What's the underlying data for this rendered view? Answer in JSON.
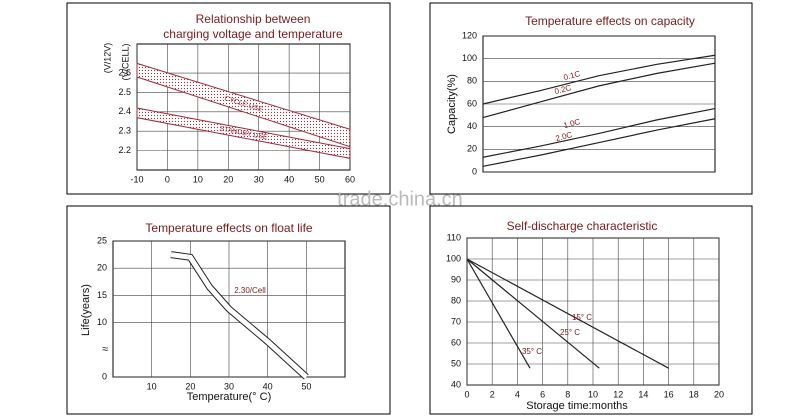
{
  "watermark": "trade.china.cn",
  "chart_data": [
    {
      "type": "band",
      "title": [
        "Relationship between",
        "charging voltage and temperature"
      ],
      "y_label": "(V/CELL)",
      "y2_label": "(V/12V)",
      "x": [
        -10,
        60
      ],
      "series": [
        {
          "name": "CYCLE USE",
          "color": "#9b2a3a",
          "upper": [
            2.65,
            2.31
          ],
          "lower": [
            2.58,
            2.22
          ]
        },
        {
          "name": "STANDBY USE",
          "color": "#9b2a3a",
          "upper": [
            2.42,
            2.21
          ],
          "lower": [
            2.37,
            2.16
          ]
        }
      ],
      "xlim": [
        -10,
        60
      ],
      "xticks": [
        -10,
        0,
        10,
        20,
        30,
        40,
        50,
        60
      ],
      "ylim": [
        2.1,
        2.75
      ],
      "yticks": [
        2.2,
        2.3,
        2.4,
        2.5,
        2.6
      ],
      "grid": true
    },
    {
      "type": "line",
      "title": [
        "Temperature effects on capacity"
      ],
      "y_label": "Capacity(%)",
      "x": [
        0,
        0.25,
        0.5,
        0.75,
        1
      ],
      "xlim": [
        0,
        1
      ],
      "series": [
        {
          "name": "0.1C",
          "color": "#222",
          "values": [
            60,
            72,
            85,
            95,
            103
          ]
        },
        {
          "name": "0.2C",
          "color": "#222",
          "values": [
            48,
            62,
            76,
            87,
            96
          ]
        },
        {
          "name": "1.0C",
          "color": "#222",
          "values": [
            13,
            23,
            34,
            46,
            56
          ]
        },
        {
          "name": "2.0C",
          "color": "#222",
          "values": [
            5,
            15,
            26,
            37,
            47
          ]
        }
      ],
      "ylim": [
        0,
        120
      ],
      "yticks": [
        0,
        20,
        40,
        60,
        80,
        100,
        120
      ],
      "grid": true
    },
    {
      "type": "line",
      "title": [
        "Temperature effects on float life"
      ],
      "y_label": "Life(years)",
      "x_label": "Temperature(° C)",
      "x": [
        15,
        20,
        25,
        30,
        40,
        50
      ],
      "xlim": [
        0,
        60
      ],
      "series": [
        {
          "name": "2.30/Cell",
          "color": "#222",
          "values": [
            22.5,
            22,
            16.5,
            12.5,
            6.5,
            0
          ]
        }
      ],
      "xticks": [
        10,
        20,
        30,
        40,
        50
      ],
      "ylim": [
        0,
        25
      ],
      "yticks": [
        0,
        10,
        15,
        20,
        25
      ],
      "grid": true
    },
    {
      "type": "line",
      "title": [
        "Self-discharge characteristic"
      ],
      "x_label": "Storage  time:months",
      "series": [
        {
          "name": "15° C",
          "color": "#222",
          "x": [
            0,
            16
          ],
          "values": [
            100,
            48
          ]
        },
        {
          "name": "25° C",
          "color": "#222",
          "x": [
            0,
            10.5
          ],
          "values": [
            100,
            48
          ]
        },
        {
          "name": "35° C",
          "color": "#222",
          "x": [
            0,
            5
          ],
          "values": [
            100,
            48
          ]
        }
      ],
      "xlim": [
        0,
        20
      ],
      "xticks": [
        0,
        2,
        4,
        6,
        8,
        10,
        12,
        14,
        16,
        18,
        20
      ],
      "ylim": [
        40,
        110
      ],
      "yticks": [
        40,
        50,
        60,
        70,
        80,
        90,
        100,
        110
      ],
      "grid": true
    }
  ]
}
